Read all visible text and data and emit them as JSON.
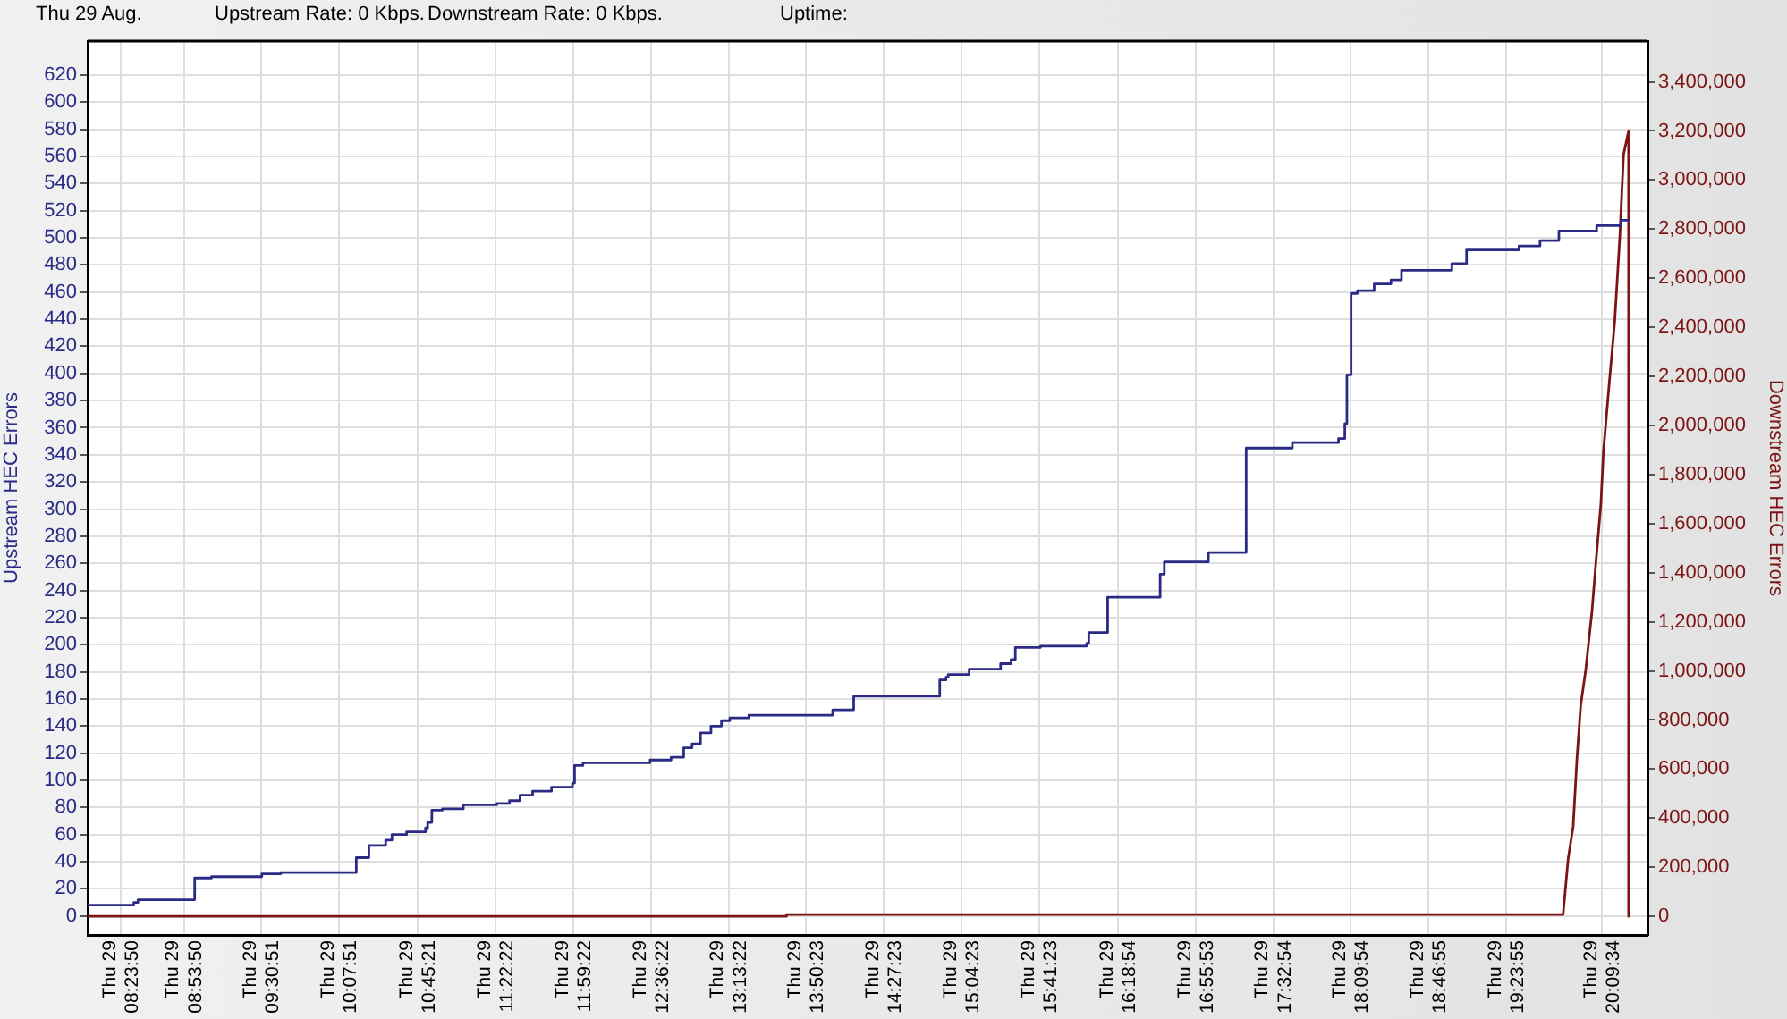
{
  "chart_data": {
    "type": "line",
    "title": "Thu 29 Aug.",
    "annotations": [
      "Upstream Rate: 0 Kbps.",
      "Downstream Rate: 0 Kbps.",
      "Uptime:"
    ],
    "ylabel": "Upstream HEC Errors",
    "y2label": "Downstream HEC Errors",
    "xlim": [
      "--08-29T08:08",
      "--08-29T20:31:12"
    ],
    "xticks": [
      {
        "value": "--08-29T08:23:50",
        "label": "Thu 29 08:23:50"
      },
      {
        "value": "--08-29T08:53:50",
        "label": "Thu 29 08:53:50"
      },
      {
        "value": "--08-29T09:30:51",
        "label": "Thu 29 09:30:51"
      },
      {
        "value": "--08-29T10:07:51",
        "label": "Thu 29 10:07:51"
      },
      {
        "value": "--08-29T10:45:21",
        "label": "Thu 29 10:45:21"
      },
      {
        "value": "--08-29T11:22:22",
        "label": "Thu 29 11:22:22"
      },
      {
        "value": "--08-29T11:59:22",
        "label": "Thu 29 11:59:22"
      },
      {
        "value": "--08-29T12:36:22",
        "label": "Thu 29 12:36:22"
      },
      {
        "value": "--08-29T13:13:22",
        "label": "Thu 29 13:13:22"
      },
      {
        "value": "--08-29T13:50:23",
        "label": "Thu 29 13:50:23"
      },
      {
        "value": "--08-29T14:27:23",
        "label": "Thu 29 14:27:23"
      },
      {
        "value": "--08-29T15:04:23",
        "label": "Thu 29 15:04:23"
      },
      {
        "value": "--08-29T15:41:23",
        "label": "Thu 29 15:41:23"
      },
      {
        "value": "--08-29T16:18:54",
        "label": "Thu 29 16:18:54"
      },
      {
        "value": "--08-29T16:55:53",
        "label": "Thu 29 16:55:53"
      },
      {
        "value": "--08-29T17:32:54",
        "label": "Thu 29 17:32:54"
      },
      {
        "value": "--08-29T18:09:54",
        "label": "Thu 29 18:09:54"
      },
      {
        "value": "--08-29T18:46:55",
        "label": "Thu 29 18:46:55"
      },
      {
        "value": "--08-29T19:23:55",
        "label": "Thu 29 19:23:55"
      },
      {
        "value": "--08-29T20:09:34",
        "label": "Thu 29 20:09:34"
      }
    ],
    "ylim": [
      -14,
      645
    ],
    "yticks": [
      0,
      20,
      40,
      60,
      80,
      100,
      120,
      140,
      160,
      180,
      200,
      220,
      240,
      260,
      280,
      300,
      320,
      340,
      360,
      380,
      400,
      420,
      440,
      460,
      480,
      500,
      520,
      540,
      560,
      580,
      600,
      620
    ],
    "y2lim": [
      -76000,
      3566000
    ],
    "y2ticks": [
      0,
      {
        "value": 200000,
        "label": "200,000"
      },
      {
        "value": 400000,
        "label": "400,000"
      },
      {
        "value": 600000,
        "label": "600,000"
      },
      {
        "value": 800000,
        "label": "800,000"
      },
      {
        "value": 1000000,
        "label": "1,000,000"
      },
      {
        "value": 1200000,
        "label": "1,200,000"
      },
      {
        "value": 1400000,
        "label": "1,400,000"
      },
      {
        "value": 1600000,
        "label": "1,600,000"
      },
      {
        "value": 1800000,
        "label": "1,800,000"
      },
      {
        "value": 2000000,
        "label": "2,000,000"
      },
      {
        "value": 2200000,
        "label": "2,200,000"
      },
      {
        "value": 2400000,
        "label": "2,400,000"
      },
      {
        "value": 2600000,
        "label": "2,600,000"
      },
      {
        "value": 2800000,
        "label": "2,800,000"
      },
      {
        "value": 3000000,
        "label": "3,000,000"
      },
      {
        "value": 3200000,
        "label": "3,200,000"
      },
      {
        "value": 3400000,
        "label": "3,400,000"
      }
    ],
    "grid": true,
    "series": [
      {
        "type": "step",
        "color": "#2b2b85",
        "x": [
          "--08-29T08:08",
          "--08-29T08:30",
          "--08-29T08:32",
          "--08-29T08:59",
          "--08-29T09:07",
          "--08-29T09:31",
          "--08-29T09:40",
          "--08-29T10:16",
          "--08-29T10:22",
          "--08-29T10:30",
          "--08-29T10:33",
          "--08-29T10:40",
          "--08-29T10:49",
          "--08-29T10:50",
          "--08-29T10:52",
          "--08-29T10:57",
          "--08-29T11:07",
          "--08-29T11:23",
          "--08-29T11:29",
          "--08-29T11:34",
          "--08-29T11:40",
          "--08-29T11:49",
          "--08-29T11:59",
          "--08-29T12:00",
          "--08-29T12:04",
          "--08-29T12:36",
          "--08-29T12:46",
          "--08-29T12:52",
          "--08-29T12:56",
          "--08-29T13:00",
          "--08-29T13:05",
          "--08-29T13:10",
          "--08-29T13:14",
          "--08-29T13:23",
          "--08-29T14:03",
          "--08-29T14:13",
          "--08-29T14:54",
          "--08-29T14:57",
          "--08-29T14:58",
          "--08-29T15:08",
          "--08-29T15:23",
          "--08-29T15:28",
          "--08-29T15:30",
          "--08-29T15:42",
          "--08-29T16:04",
          "--08-29T16:05",
          "--08-29T16:14",
          "--08-29T16:39",
          "--08-29T16:41",
          "--08-29T17:02",
          "--08-29T17:20",
          "--08-29T17:42",
          "--08-29T18:04",
          "--08-29T18:07",
          "--08-29T18:08",
          "--08-29T18:10",
          "--08-29T18:13",
          "--08-29T18:21",
          "--08-29T18:29",
          "--08-29T18:34",
          "--08-29T18:58",
          "--08-29T19:05",
          "--08-29T19:30",
          "--08-29T19:40",
          "--08-29T19:49",
          "--08-29T20:07",
          "--08-29T20:18:36",
          "--08-29T20:22:12"
        ],
        "values": [
          8,
          10,
          12,
          28,
          29,
          31,
          32,
          43,
          52,
          56,
          60,
          62,
          65,
          69,
          78,
          79,
          82,
          83,
          85,
          89,
          92,
          95,
          98,
          111,
          113,
          115,
          117,
          124,
          127,
          135,
          140,
          144,
          146,
          148,
          152,
          162,
          174,
          176,
          178,
          182,
          186,
          189,
          198,
          199,
          201,
          209,
          235,
          252,
          261,
          268,
          345,
          349,
          352,
          363,
          399,
          459,
          461,
          466,
          469,
          476,
          481,
          491,
          494,
          498,
          505,
          509,
          513,
          513
        ]
      },
      {
        "color": "#7d1414",
        "axis": "y2",
        "x": [
          "--08-29T08:08",
          "--08-29T13:41",
          "--08-29T13:41",
          "--08-29T19:51",
          "--08-29T19:53:24",
          "--08-29T19:55:48",
          "--08-29T19:57:36",
          "--08-29T19:59:24",
          "--08-29T20:01:48",
          "--08-29T20:04:48",
          "--08-29T20:06:36",
          "--08-29T20:09",
          "--08-29T20:10:12",
          "--08-29T20:12:36",
          "--08-29T20:15:36",
          "--08-29T20:18",
          "--08-29T20:19:48",
          "--08-29T20:21:36",
          "--08-29T20:22:12",
          "--08-29T20:22:12"
        ],
        "values": [
          0,
          0,
          7000,
          7000,
          234000,
          366000,
          643000,
          860000,
          1005000,
          1246000,
          1439000,
          1680000,
          1891000,
          2133000,
          2424000,
          2764000,
          3103000,
          3176000,
          3200000,
          0
        ]
      }
    ]
  }
}
